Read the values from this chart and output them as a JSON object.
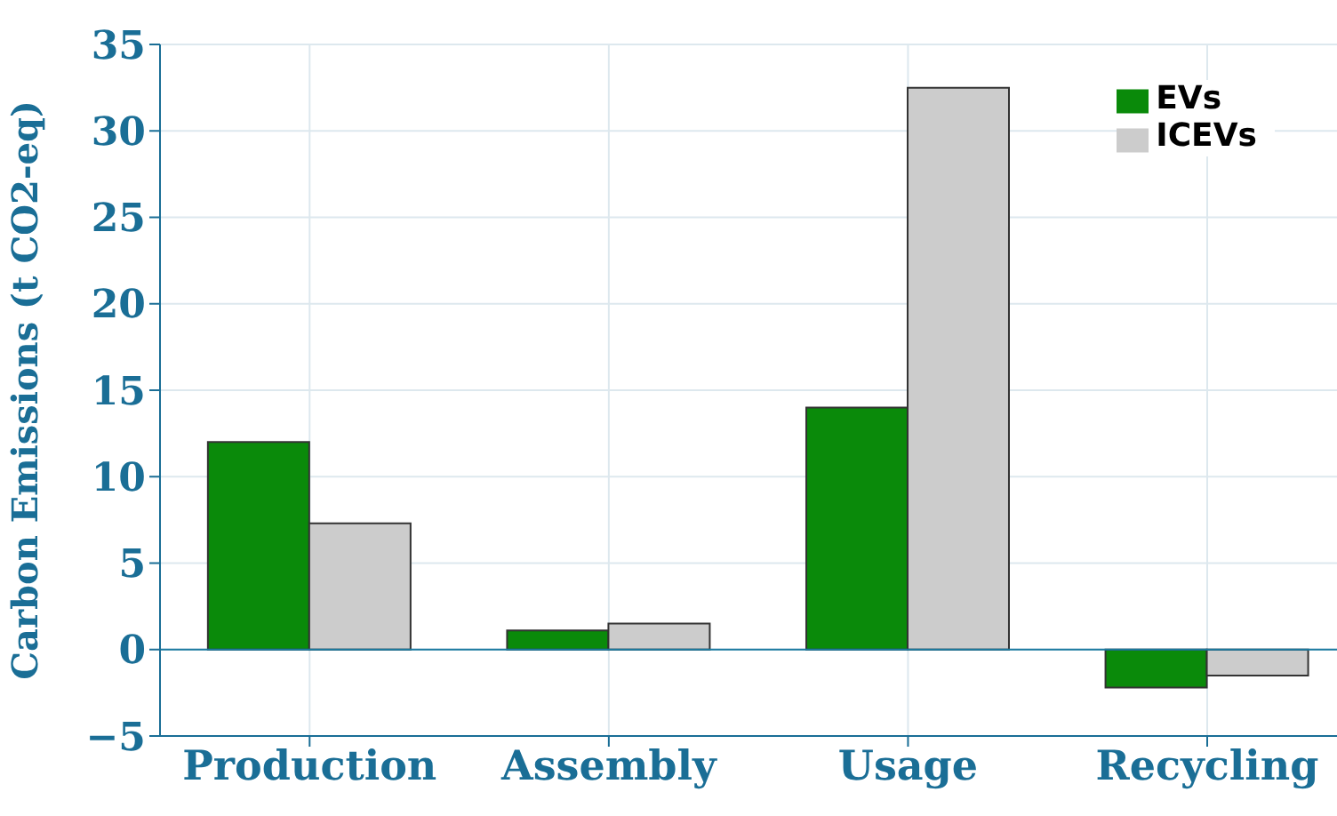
{
  "chart_data": {
    "type": "bar",
    "ylabel": "Carbon Emissions (t CO2-eq)",
    "categories": [
      "Production",
      "Assembly",
      "Usage",
      "Recycling"
    ],
    "series": [
      {
        "name": "EVs",
        "color": "#0a8a0a",
        "values": [
          12,
          1.1,
          14,
          -2.2
        ]
      },
      {
        "name": "ICEVs",
        "color": "#cccccc",
        "values": [
          7.3,
          1.5,
          32.5,
          -1.5
        ]
      }
    ],
    "ylim": [
      -5,
      35
    ],
    "yticks": [
      {
        "value": -5,
        "label": "−5"
      },
      0,
      5,
      10,
      15,
      20,
      25,
      30,
      35
    ],
    "grid": true,
    "legend": "top right",
    "ref_lines": [
      {
        "axis": "y",
        "value": 0,
        "color": "#1a7aa0"
      }
    ]
  }
}
